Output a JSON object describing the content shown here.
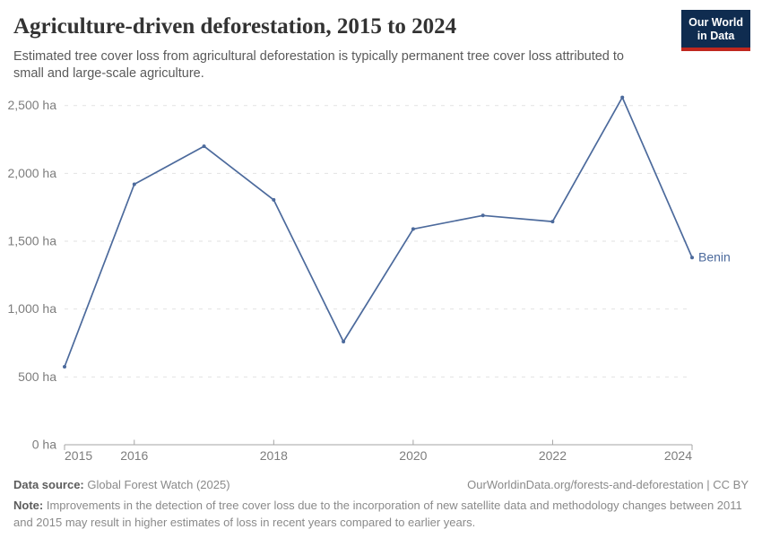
{
  "header": {
    "title": "Agriculture-driven deforestation, 2015 to 2024",
    "subtitle": "Estimated tree cover loss from agricultural deforestation is typically permanent tree cover loss attributed to small and large-scale agriculture."
  },
  "logo": {
    "line1": "Our World",
    "line2": "in Data",
    "bg_color": "#0f2c50",
    "accent_color": "#c0271e"
  },
  "chart_data": {
    "type": "line",
    "title": "Agriculture-driven deforestation, 2015 to 2024",
    "unit": "ha",
    "x": [
      2015,
      2016,
      2017,
      2018,
      2019,
      2020,
      2021,
      2022,
      2023,
      2024
    ],
    "series": [
      {
        "name": "Benin",
        "values": [
          575,
          1920,
          2200,
          1805,
          760,
          1590,
          1690,
          1645,
          2560,
          1380
        ]
      }
    ],
    "xlim": [
      2015,
      2024
    ],
    "ylim": [
      0,
      2500
    ],
    "y_ticks": [
      {
        "value": 0,
        "label": "0 ha"
      },
      {
        "value": 500,
        "label": "500 ha"
      },
      {
        "value": 1000,
        "label": "1,000 ha"
      },
      {
        "value": 1500,
        "label": "1,500 ha"
      },
      {
        "value": 2000,
        "label": "2,000 ha"
      },
      {
        "value": 2500,
        "label": "2,500 ha"
      }
    ],
    "x_ticks": [
      {
        "value": 2015,
        "label": "2015"
      },
      {
        "value": 2016,
        "label": "2016"
      },
      {
        "value": 2018,
        "label": "2018"
      },
      {
        "value": 2020,
        "label": "2020"
      },
      {
        "value": 2022,
        "label": "2022"
      },
      {
        "value": 2024,
        "label": "2024"
      }
    ],
    "grid": "dashed-horizontal",
    "legend_position": "end-of-line-label",
    "line_color": "#4c6a9c",
    "axis_color": "#a5a5a5",
    "grid_color": "#e2e2e2",
    "tick_label_color": "#7d7d7d"
  },
  "footer": {
    "datasource_label": "Data source:",
    "datasource_value": " Global Forest Watch (2025)",
    "url": "OurWorldinData.org/forests-and-deforestation | CC BY",
    "note_label": "Note:",
    "note_value": " Improvements in the detection of tree cover loss due to the incorporation of new satellite data and methodology changes between 2011 and 2015 may result in higher estimates of loss in recent years compared to earlier years."
  }
}
